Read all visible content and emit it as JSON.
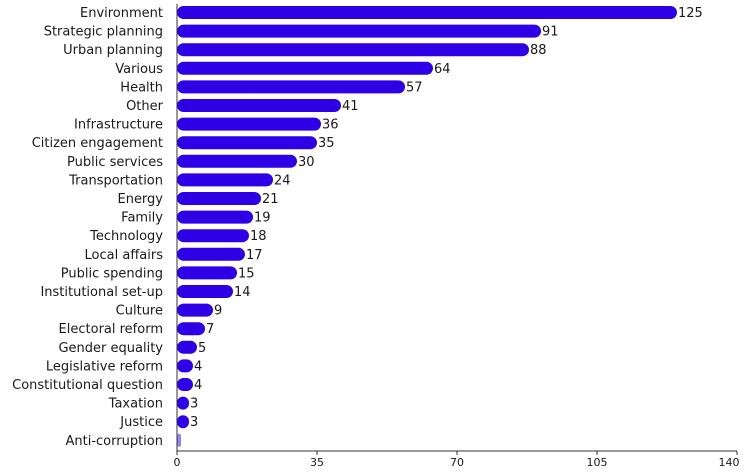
{
  "chart_data": {
    "type": "bar",
    "orientation": "horizontal",
    "categories": [
      "Environment",
      "Strategic planning",
      "Urban planning",
      "Various",
      "Health",
      "Other",
      "Infrastructure",
      "Citizen engagement",
      "Public services",
      "Transportation",
      "Energy",
      "Family",
      "Technology",
      "Local affairs",
      "Public spending",
      "Institutional set-up",
      "Culture",
      "Electoral reform",
      "Gender equality",
      "Legislative reform",
      "Constitutional question",
      "Taxation",
      "Justice",
      "Anti-corruption"
    ],
    "values": [
      125,
      91,
      88,
      64,
      57,
      41,
      36,
      35,
      30,
      24,
      21,
      19,
      18,
      17,
      15,
      14,
      9,
      7,
      5,
      4,
      4,
      3,
      3,
      1
    ],
    "value_labels": [
      "125",
      "91",
      "88",
      "64",
      "57",
      "41",
      "36",
      "35",
      "30",
      "24",
      "21",
      "19",
      "18",
      "17",
      "15",
      "14",
      "9",
      "7",
      "5",
      "4",
      "4",
      "3",
      "3",
      ""
    ],
    "xlim": [
      0,
      140
    ],
    "xticks": [
      "0",
      "35",
      "70",
      "105",
      "140"
    ],
    "xtick_values": [
      0,
      35,
      70,
      105,
      140
    ],
    "title": "",
    "xlabel": "",
    "ylabel": "",
    "grid": false,
    "legend": "none",
    "colors": {
      "bar": "#2d00e6",
      "bar_faded": "#8f86e8",
      "axis": "#333333",
      "text": "#1a1a1a"
    }
  }
}
